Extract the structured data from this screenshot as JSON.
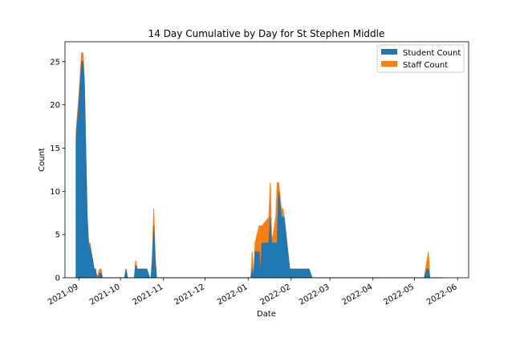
{
  "chart_data": {
    "type": "area",
    "title": "14 Day Cumulative by Day for St Stephen Middle",
    "xlabel": "Date",
    "ylabel": "Count",
    "ylim": [
      0,
      27.3
    ],
    "xlim": [
      "2021-08-22",
      "2022-06-09"
    ],
    "grid": false,
    "legend_position": "top-right",
    "x_ticks": [
      "2021-09",
      "2021-10",
      "2021-11",
      "2021-12",
      "2022-01",
      "2022-02",
      "2022-03",
      "2022-04",
      "2022-05",
      "2022-06"
    ],
    "x_tick_dates": [
      "2021-09-01",
      "2021-10-01",
      "2021-11-01",
      "2021-12-01",
      "2022-01-01",
      "2022-02-01",
      "2022-03-01",
      "2022-04-01",
      "2022-05-01",
      "2022-06-01"
    ],
    "y_ticks": [
      0,
      5,
      10,
      15,
      20,
      25
    ],
    "series": [
      {
        "name": "Student Count",
        "color": "#1f77b4",
        "points": [
          [
            "2021-08-30",
            16
          ],
          [
            "2021-09-01",
            20
          ],
          [
            "2021-09-03",
            25
          ],
          [
            "2021-09-04",
            25
          ],
          [
            "2021-09-05",
            22
          ],
          [
            "2021-09-06",
            14
          ],
          [
            "2021-09-07",
            7
          ],
          [
            "2021-09-08",
            4
          ],
          [
            "2021-09-09",
            3.5
          ],
          [
            "2021-09-11",
            2
          ],
          [
            "2021-09-12",
            1
          ],
          [
            "2021-09-13",
            1
          ],
          [
            "2021-09-14",
            0
          ],
          [
            "2021-09-15",
            0
          ],
          [
            "2021-09-16",
            0.5
          ],
          [
            "2021-09-17",
            0.5
          ],
          [
            "2021-09-18",
            0
          ],
          [
            "2021-10-04",
            0
          ],
          [
            "2021-10-05",
            1
          ],
          [
            "2021-10-06",
            0
          ],
          [
            "2021-10-11",
            0
          ],
          [
            "2021-10-12",
            1.5
          ],
          [
            "2021-10-13",
            1
          ],
          [
            "2021-10-20",
            1
          ],
          [
            "2021-10-22",
            0
          ],
          [
            "2021-10-23",
            0
          ],
          [
            "2021-10-24",
            2
          ],
          [
            "2021-10-25",
            6
          ],
          [
            "2021-10-26",
            2
          ],
          [
            "2021-10-27",
            0
          ],
          [
            "2022-01-03",
            0
          ],
          [
            "2022-01-04",
            1
          ],
          [
            "2022-01-05",
            0
          ],
          [
            "2022-01-06",
            3
          ],
          [
            "2022-01-09",
            3
          ],
          [
            "2022-01-10",
            0
          ],
          [
            "2022-01-11",
            4
          ],
          [
            "2022-01-16",
            4
          ],
          [
            "2022-01-17",
            7
          ],
          [
            "2022-01-18",
            4
          ],
          [
            "2022-01-21",
            4
          ],
          [
            "2022-01-22",
            4
          ],
          [
            "2022-01-23",
            10
          ],
          [
            "2022-01-25",
            7
          ],
          [
            "2022-01-26",
            7
          ],
          [
            "2022-01-27",
            7
          ],
          [
            "2022-01-29",
            4
          ],
          [
            "2022-01-31",
            1
          ],
          [
            "2022-02-14",
            1
          ],
          [
            "2022-02-16",
            0
          ],
          [
            "2022-05-08",
            0
          ],
          [
            "2022-05-10",
            1
          ],
          [
            "2022-05-11",
            1
          ],
          [
            "2022-05-12",
            0
          ],
          [
            "2022-05-22",
            0
          ]
        ]
      },
      {
        "name": "Staff Count",
        "color": "#ff7f0e",
        "points": [
          [
            "2021-08-30",
            1
          ],
          [
            "2021-09-01",
            1
          ],
          [
            "2021-09-03",
            1
          ],
          [
            "2021-09-04",
            1
          ],
          [
            "2021-09-05",
            1
          ],
          [
            "2021-09-06",
            1
          ],
          [
            "2021-09-07",
            0
          ],
          [
            "2021-09-08",
            0
          ],
          [
            "2021-09-09",
            0.5
          ],
          [
            "2021-09-11",
            0
          ],
          [
            "2021-09-12",
            0
          ],
          [
            "2021-09-13",
            0
          ],
          [
            "2021-09-14",
            0
          ],
          [
            "2021-09-15",
            0.5
          ],
          [
            "2021-09-16",
            0.5
          ],
          [
            "2021-09-17",
            0.5
          ],
          [
            "2021-09-18",
            0
          ],
          [
            "2021-10-04",
            0
          ],
          [
            "2021-10-05",
            0
          ],
          [
            "2021-10-06",
            0
          ],
          [
            "2021-10-11",
            0
          ],
          [
            "2021-10-12",
            0.5
          ],
          [
            "2021-10-13",
            0
          ],
          [
            "2021-10-20",
            0
          ],
          [
            "2021-10-22",
            0
          ],
          [
            "2021-10-23",
            0
          ],
          [
            "2021-10-24",
            0.5
          ],
          [
            "2021-10-25",
            2
          ],
          [
            "2021-10-26",
            0.5
          ],
          [
            "2021-10-27",
            0
          ],
          [
            "2022-01-03",
            0
          ],
          [
            "2022-01-04",
            2
          ],
          [
            "2022-01-05",
            0
          ],
          [
            "2022-01-06",
            1
          ],
          [
            "2022-01-09",
            3
          ],
          [
            "2022-01-10",
            6
          ],
          [
            "2022-01-11",
            2
          ],
          [
            "2022-01-16",
            3
          ],
          [
            "2022-01-17",
            4
          ],
          [
            "2022-01-18",
            0
          ],
          [
            "2022-01-21",
            3
          ],
          [
            "2022-01-22",
            7
          ],
          [
            "2022-01-23",
            1
          ],
          [
            "2022-01-25",
            1
          ],
          [
            "2022-01-26",
            1
          ],
          [
            "2022-01-27",
            0
          ],
          [
            "2022-01-29",
            0
          ],
          [
            "2022-01-31",
            0
          ],
          [
            "2022-02-14",
            0
          ],
          [
            "2022-02-16",
            0
          ],
          [
            "2022-05-08",
            0
          ],
          [
            "2022-05-10",
            1
          ],
          [
            "2022-05-11",
            2
          ],
          [
            "2022-05-12",
            0
          ],
          [
            "2022-05-22",
            0
          ]
        ]
      }
    ]
  }
}
